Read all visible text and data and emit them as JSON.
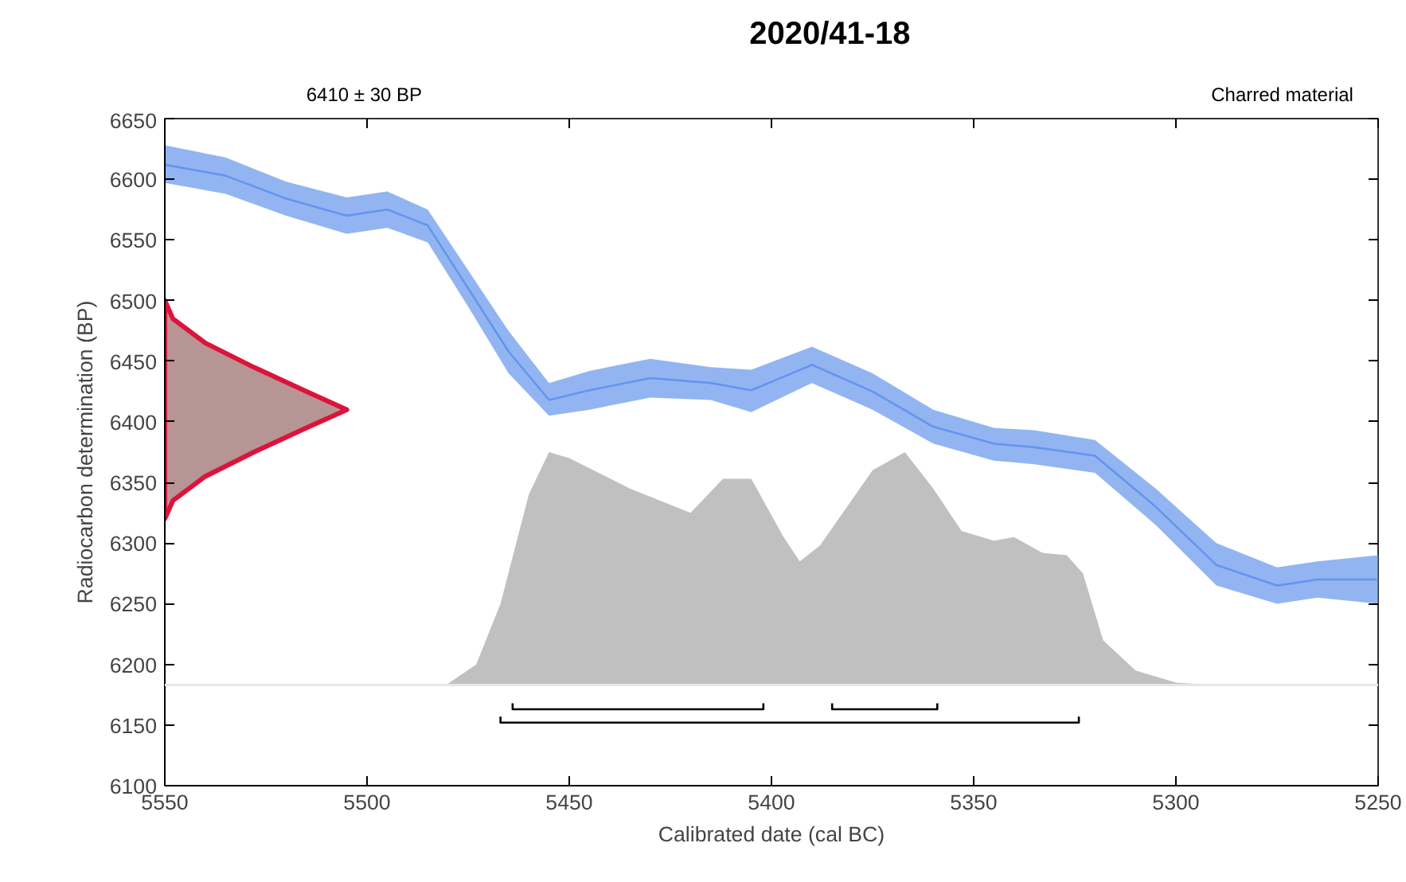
{
  "chart_data": {
    "type": "area",
    "title": "2020/41-18",
    "annotations": [
      "6410 ± 30 BP",
      "Charred material"
    ],
    "xlabel": "Calibrated date (cal BC)",
    "ylabel": "Radiocarbon determination (BP)",
    "xlim": [
      5550,
      5250
    ],
    "xticks": [
      5550,
      5500,
      5450,
      5400,
      5350,
      5300,
      5250
    ],
    "ylim": [
      6100,
      6650
    ],
    "yticks": [
      6100,
      6150,
      6200,
      6250,
      6300,
      6350,
      6400,
      6450,
      6500,
      6550,
      6600,
      6650
    ],
    "grid": false,
    "ref_lines": [
      {
        "axis": "y",
        "value": 6183,
        "label": null,
        "color": "#e6e6e6"
      }
    ],
    "series": [
      {
        "type": "line",
        "color": "#6495ed",
        "x": [
          5550,
          5535,
          5520,
          5505,
          5495,
          5485,
          5475,
          5465,
          5455,
          5445,
          5430,
          5415,
          5405,
          5390,
          5375,
          5360,
          5345,
          5335,
          5320,
          5305,
          5290,
          5275,
          5265,
          5250
        ],
        "values": [
          6612,
          6603,
          6584,
          6570,
          6575,
          6562,
          6510,
          6458,
          6418,
          6426,
          6436,
          6432,
          6426,
          6447,
          6425,
          6396,
          6382,
          6379,
          6372,
          6330,
          6282,
          6265,
          6270,
          6270
        ],
        "upper": [
          6628,
          6618,
          6598,
          6585,
          6590,
          6575,
          6525,
          6475,
          6432,
          6442,
          6452,
          6445,
          6443,
          6462,
          6440,
          6410,
          6395,
          6393,
          6385,
          6345,
          6300,
          6280,
          6285,
          6290
        ],
        "lower": [
          6597,
          6588,
          6570,
          6555,
          6560,
          6548,
          6495,
          6440,
          6405,
          6410,
          6420,
          6418,
          6408,
          6432,
          6410,
          6382,
          6368,
          6365,
          6358,
          6315,
          6265,
          6250,
          6255,
          6250
        ]
      },
      {
        "color": "#c0c0c0",
        "x": [
          5490,
          5480,
          5473,
          5467,
          5460,
          5455,
          5450,
          5435,
          5420,
          5412,
          5405,
          5397,
          5393,
          5388,
          5375,
          5367,
          5360,
          5353,
          5345,
          5340,
          5333,
          5327,
          5323,
          5318,
          5310,
          5300,
          5290
        ],
        "values": [
          6183,
          6184,
          6200,
          6250,
          6340,
          6375,
          6370,
          6345,
          6325,
          6353,
          6353,
          6305,
          6285,
          6298,
          6360,
          6375,
          6345,
          6310,
          6302,
          6305,
          6292,
          6290,
          6275,
          6220,
          6195,
          6185,
          6183
        ]
      },
      {
        "color": "#dc143c",
        "x": [
          5550,
          5548,
          5540,
          5528,
          5515,
          5505,
          5515,
          5528,
          5540,
          5548,
          5550
        ],
        "values": [
          6320,
          6335,
          6355,
          6375,
          6395,
          6410,
          6425,
          6445,
          6465,
          6485,
          6500
        ]
      },
      {
        "type": "line",
        "color": "#000000",
        "x": [
          5464,
          5464,
          5402,
          5402
        ],
        "values": [
          6168,
          6163,
          6163,
          6168
        ]
      },
      {
        "type": "line",
        "color": "#000000",
        "x": [
          5385,
          5385,
          5359,
          5359
        ],
        "values": [
          6168,
          6163,
          6163,
          6168
        ]
      },
      {
        "type": "line",
        "color": "#000000",
        "x": [
          5467,
          5467,
          5324,
          5324
        ],
        "values": [
          6157,
          6152,
          6152,
          6157
        ]
      }
    ]
  }
}
